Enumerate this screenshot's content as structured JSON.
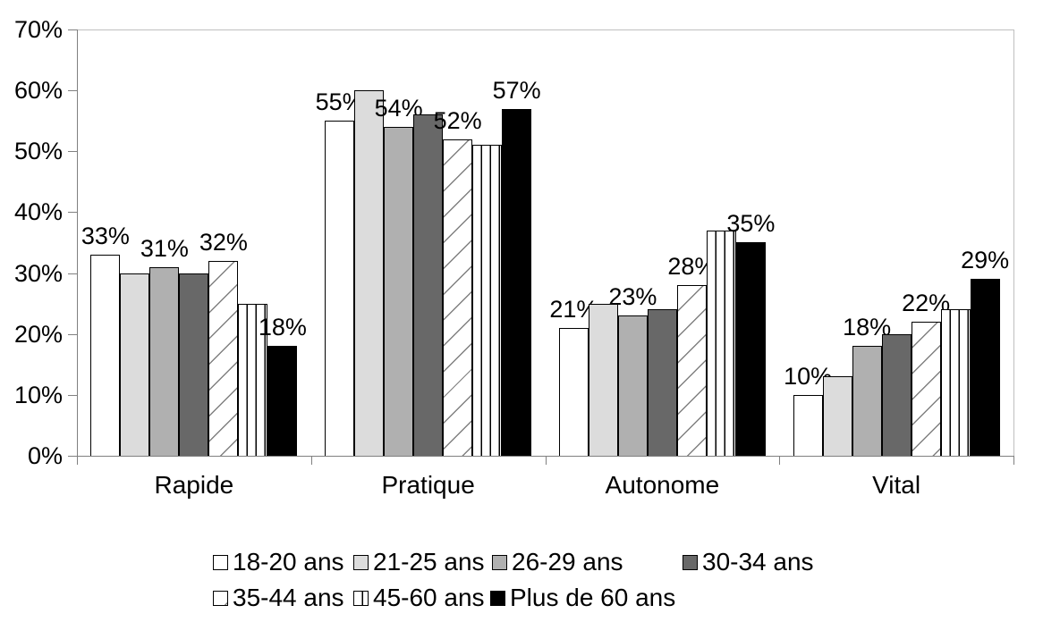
{
  "chart_data": {
    "type": "bar",
    "title": "",
    "xlabel": "",
    "ylabel": "",
    "categories": [
      "Rapide",
      "Pratique",
      "Autonome",
      "Vital"
    ],
    "series": [
      {
        "name": "18-20 ans",
        "values": [
          33,
          55,
          21,
          10
        ],
        "fill": "#ffffff",
        "pattern": "solid",
        "show_data_labels": true
      },
      {
        "name": "21-25 ans",
        "values": [
          30,
          60,
          25,
          13
        ],
        "fill": "#dcdcdc",
        "pattern": "solid",
        "show_data_labels": false
      },
      {
        "name": "26-29 ans",
        "values": [
          31,
          54,
          23,
          18
        ],
        "fill": "#b0b0b0",
        "pattern": "solid",
        "show_data_labels": true
      },
      {
        "name": "30-34 ans",
        "values": [
          30,
          56,
          24,
          20
        ],
        "fill": "#686868",
        "pattern": "solid",
        "show_data_labels": false
      },
      {
        "name": "35-44 ans",
        "values": [
          32,
          52,
          28,
          22
        ],
        "fill": "#ffffff",
        "pattern": "diagonal-hatch",
        "show_data_labels": true
      },
      {
        "name": "45-60 ans",
        "values": [
          25,
          51,
          37,
          24
        ],
        "fill": "#ffffff",
        "pattern": "vertical-stripes",
        "show_data_labels": false
      },
      {
        "name": "Plus de 60 ans",
        "values": [
          18,
          57,
          35,
          29
        ],
        "fill": "#000000",
        "pattern": "solid",
        "show_data_labels": true
      }
    ],
    "data_labels": {
      "Rapide": [
        "33%",
        "31%",
        "32%",
        "18%"
      ],
      "Pratique": [
        "55%",
        "54%",
        "52%",
        "57%"
      ],
      "Autonome": [
        "21%",
        "23%",
        "28%",
        "35%"
      ],
      "Vital": [
        "10%",
        "18%",
        "22%",
        "29%"
      ]
    },
    "data_label_suffix": "%",
    "ylim": [
      0,
      70
    ],
    "ytick_step": 10,
    "ytick_labels": [
      "0%",
      "10%",
      "20%",
      "30%",
      "40%",
      "50%",
      "60%",
      "70%"
    ],
    "grid": false,
    "legend_position": "bottom",
    "legend_rows": [
      [
        "18-20 ans",
        "21-25 ans",
        "26-29 ans",
        "30-34 ans"
      ],
      [
        "35-44 ans",
        "45-60 ans",
        "Plus de 60 ans"
      ]
    ],
    "colors": {
      "background": "#ffffff",
      "text": "#000000",
      "axis_line": "#808080",
      "plot_border": "#bfbfbf",
      "bar_border": "#000000",
      "hatch_line": "#808080"
    }
  }
}
